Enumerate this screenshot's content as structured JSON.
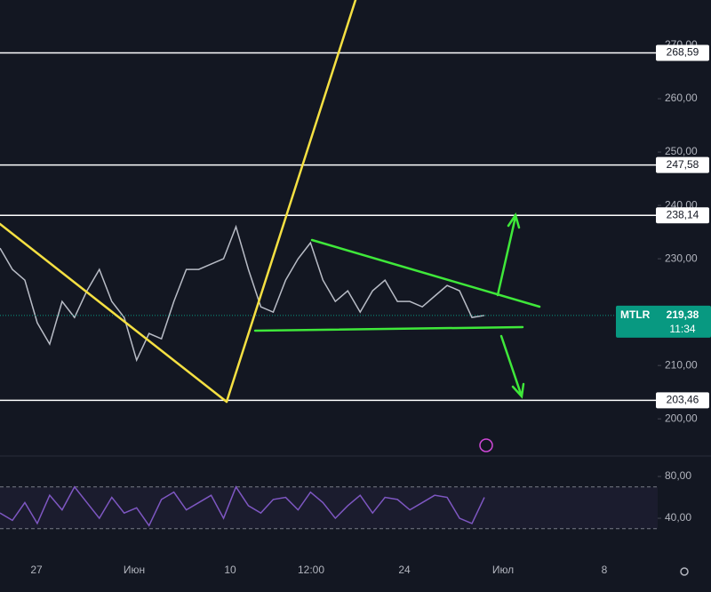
{
  "chart_data": [
    {
      "type": "line",
      "symbol": "MTLR",
      "last_price": {
        "value": 219.38,
        "label": "219,38"
      },
      "countdown": "11:34",
      "color": "#b8bcc6",
      "values": [
        232,
        228,
        226,
        218,
        214,
        222,
        219,
        224,
        228,
        222,
        219,
        211,
        216,
        215,
        222,
        228,
        228,
        229,
        230,
        236,
        228,
        221,
        220,
        226,
        230,
        233,
        226,
        222,
        224,
        220,
        224,
        226,
        222,
        222,
        221,
        223,
        225,
        224,
        219,
        219.38
      ],
      "ylim": [
        193.2,
        278.5
      ],
      "yticks": [
        {
          "value": 200,
          "label": "200,00"
        },
        {
          "value": 210,
          "label": "210,00"
        },
        {
          "value": 230,
          "label": "230,00"
        },
        {
          "value": 240,
          "label": "240,00"
        },
        {
          "value": 250,
          "label": "250,00"
        },
        {
          "value": 260,
          "label": "260,00"
        },
        {
          "value": 270,
          "label": "270,00"
        }
      ],
      "levels": [
        {
          "value": 268.59,
          "label": "268,59"
        },
        {
          "value": 247.58,
          "label": "247,58"
        },
        {
          "value": 238.14,
          "label": "238,14"
        },
        {
          "value": 203.46,
          "label": "203,46"
        }
      ],
      "x_labels": [
        "27",
        "Июн",
        "10",
        "12:00",
        "24",
        "Июл",
        "8"
      ]
    },
    {
      "type": "line",
      "color": "#7e57c2",
      "values": [
        45,
        38,
        55,
        35,
        62,
        48,
        70,
        55,
        40,
        60,
        45,
        50,
        33,
        58,
        65,
        48,
        55,
        62,
        40,
        70,
        52,
        45,
        58,
        60,
        48,
        65,
        55,
        40,
        52,
        62,
        45,
        60,
        58,
        48,
        55,
        62,
        60,
        40,
        35,
        60
      ],
      "ylim": [
        4.3,
        97.9
      ],
      "yticks": [
        {
          "value": 40,
          "label": "40,00"
        },
        {
          "value": 80,
          "label": "80,00"
        }
      ],
      "bands": [
        30,
        70
      ]
    }
  ]
}
